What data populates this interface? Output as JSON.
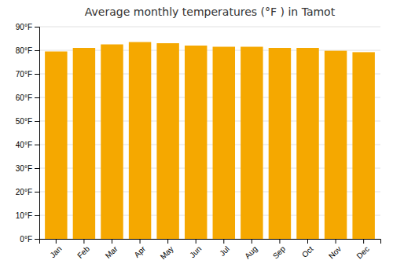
{
  "chart_data": {
    "type": "bar",
    "title": "Average monthly temperatures (°F ) in Tamot",
    "categories": [
      "Jan",
      "Feb",
      "Mar",
      "Apr",
      "May",
      "Jun",
      "Jul",
      "Aug",
      "Sep",
      "Oct",
      "Nov",
      "Dec"
    ],
    "values": [
      79.5,
      81.0,
      82.5,
      83.5,
      83.0,
      82.0,
      81.5,
      81.5,
      81.0,
      81.0,
      79.8,
      79.2
    ],
    "color": "#F5A800",
    "ylim": [
      0,
      90
    ],
    "yticks": [
      {
        "value": 0,
        "label": "0°F"
      },
      {
        "value": 10,
        "label": "10°F"
      },
      {
        "value": 20,
        "label": "20°F"
      },
      {
        "value": 30,
        "label": "30°F"
      },
      {
        "value": 40,
        "label": "40°F"
      },
      {
        "value": 50,
        "label": "50°F"
      },
      {
        "value": 60,
        "label": "60°F"
      },
      {
        "value": 70,
        "label": "70°F"
      },
      {
        "value": 80,
        "label": "80°F"
      },
      {
        "value": 90,
        "label": "90°F"
      }
    ],
    "grid": true
  }
}
